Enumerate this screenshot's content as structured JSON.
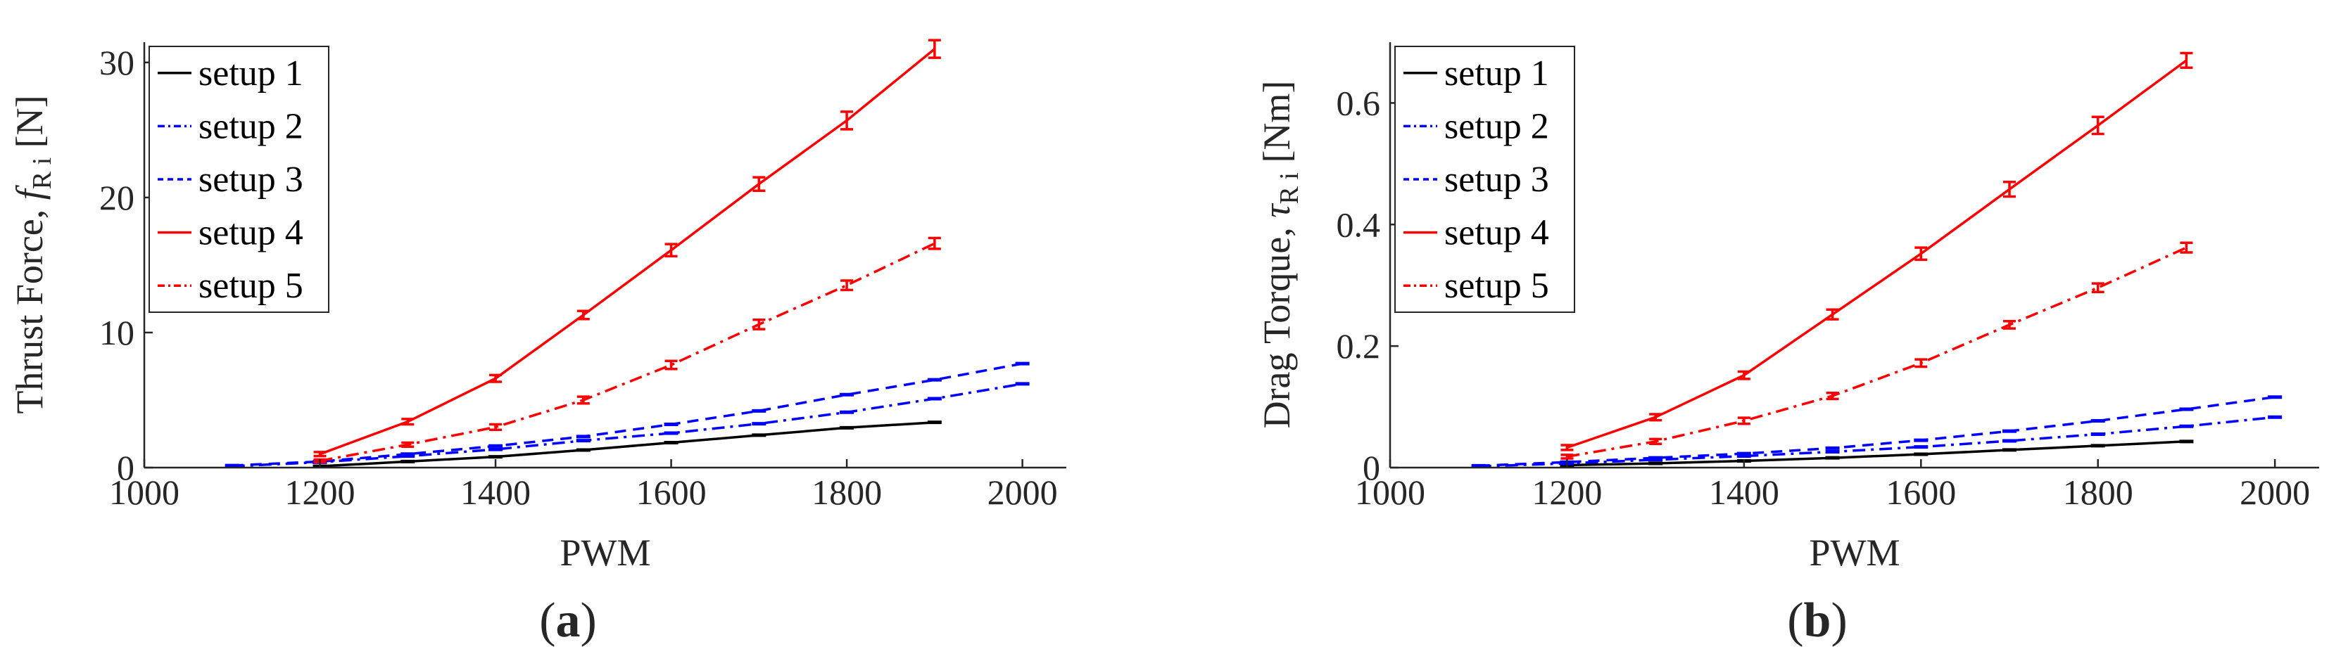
{
  "colors": {
    "black": "#000000",
    "blue": "#0000ff",
    "red": "#ff0000",
    "axis": "#262626"
  },
  "chart_data": [
    {
      "type": "line",
      "panel_label": {
        "open": "(",
        "letter": "a",
        "close": ")"
      },
      "xlabel": "PWM",
      "ylabel": {
        "prefix": "Thrust  Force, ",
        "symbol": "f",
        "subscript": "R i",
        "unit": " [N]"
      },
      "xlim": [
        1000,
        2050
      ],
      "ylim": [
        0,
        31.5
      ],
      "xticks": [
        1000,
        1200,
        1400,
        1600,
        1800,
        2000
      ],
      "yticks": [
        0,
        10,
        20,
        30
      ],
      "grid": false,
      "legend_position": "top-left",
      "series": [
        {
          "name": "setup 1",
          "color": "#000000",
          "dash": "solid",
          "x": [
            1200,
            1300,
            1400,
            1500,
            1600,
            1700,
            1800,
            1900
          ],
          "y": [
            0.1,
            0.45,
            0.8,
            1.3,
            1.85,
            2.4,
            2.95,
            3.35
          ]
        },
        {
          "name": "setup 2",
          "color": "#0000ff",
          "dash": "dashdot",
          "x": [
            1100,
            1200,
            1300,
            1400,
            1500,
            1600,
            1700,
            1800,
            1900,
            2000
          ],
          "y": [
            0.1,
            0.4,
            0.85,
            1.35,
            2.0,
            2.55,
            3.25,
            4.1,
            5.1,
            6.2
          ]
        },
        {
          "name": "setup 3",
          "color": "#0000ff",
          "dash": "dashed",
          "x": [
            1100,
            1200,
            1300,
            1400,
            1500,
            1600,
            1700,
            1800,
            1900,
            2000
          ],
          "y": [
            0.15,
            0.45,
            1.0,
            1.6,
            2.3,
            3.2,
            4.2,
            5.4,
            6.5,
            7.7
          ]
        },
        {
          "name": "setup 4",
          "color": "#ff0000",
          "dash": "solid",
          "x": [
            1200,
            1300,
            1400,
            1500,
            1600,
            1700,
            1800,
            1900
          ],
          "y": [
            1.0,
            3.4,
            6.6,
            11.3,
            16.1,
            21.0,
            25.7,
            31.0
          ],
          "err": [
            0.15,
            0.2,
            0.25,
            0.3,
            0.45,
            0.5,
            0.65,
            0.65
          ]
        },
        {
          "name": "setup 5",
          "color": "#ff0000",
          "dash": "dashdot",
          "x": [
            1200,
            1300,
            1400,
            1500,
            1600,
            1700,
            1800,
            1900
          ],
          "y": [
            0.5,
            1.7,
            3.0,
            5.0,
            7.6,
            10.6,
            13.5,
            16.6
          ],
          "err": [
            0.1,
            0.15,
            0.2,
            0.25,
            0.3,
            0.35,
            0.35,
            0.4
          ]
        }
      ]
    },
    {
      "type": "line",
      "panel_label": {
        "open": "(",
        "letter": "b",
        "close": ")"
      },
      "xlabel": "PWM",
      "ylabel": {
        "prefix": "Drag Torque,  ",
        "symbol": "τ",
        "subscript": "R i",
        "unit": " [Nm]"
      },
      "xlim": [
        1000,
        2050
      ],
      "ylim": [
        0,
        0.7
      ],
      "xticks": [
        1000,
        1200,
        1400,
        1600,
        1800,
        2000
      ],
      "yticks": [
        0,
        0.2,
        0.4,
        0.6
      ],
      "grid": false,
      "legend_position": "top-left",
      "series": [
        {
          "name": "setup 1",
          "color": "#000000",
          "dash": "solid",
          "x": [
            1200,
            1300,
            1400,
            1500,
            1600,
            1700,
            1800,
            1900
          ],
          "y": [
            0.004,
            0.007,
            0.011,
            0.016,
            0.022,
            0.029,
            0.036,
            0.043
          ]
        },
        {
          "name": "setup 2",
          "color": "#0000ff",
          "dash": "dashdot",
          "x": [
            1100,
            1200,
            1300,
            1400,
            1500,
            1600,
            1700,
            1800,
            1900,
            2000
          ],
          "y": [
            0.002,
            0.007,
            0.013,
            0.019,
            0.026,
            0.034,
            0.044,
            0.055,
            0.068,
            0.083
          ]
        },
        {
          "name": "setup 3",
          "color": "#0000ff",
          "dash": "dashed",
          "x": [
            1100,
            1200,
            1300,
            1400,
            1500,
            1600,
            1700,
            1800,
            1900,
            2000
          ],
          "y": [
            0.003,
            0.009,
            0.016,
            0.023,
            0.032,
            0.045,
            0.06,
            0.077,
            0.096,
            0.116
          ]
        },
        {
          "name": "setup 4",
          "color": "#ff0000",
          "dash": "solid",
          "x": [
            1200,
            1300,
            1400,
            1500,
            1600,
            1700,
            1800,
            1900
          ],
          "y": [
            0.033,
            0.083,
            0.152,
            0.252,
            0.352,
            0.458,
            0.563,
            0.67
          ],
          "err": [
            0.004,
            0.005,
            0.006,
            0.008,
            0.01,
            0.012,
            0.014,
            0.012
          ]
        },
        {
          "name": "setup 5",
          "color": "#ff0000",
          "dash": "dashdot",
          "x": [
            1200,
            1300,
            1400,
            1500,
            1600,
            1700,
            1800,
            1900
          ],
          "y": [
            0.018,
            0.043,
            0.077,
            0.118,
            0.172,
            0.235,
            0.296,
            0.362
          ],
          "err": [
            0.003,
            0.004,
            0.005,
            0.005,
            0.006,
            0.006,
            0.007,
            0.008
          ]
        }
      ]
    }
  ]
}
